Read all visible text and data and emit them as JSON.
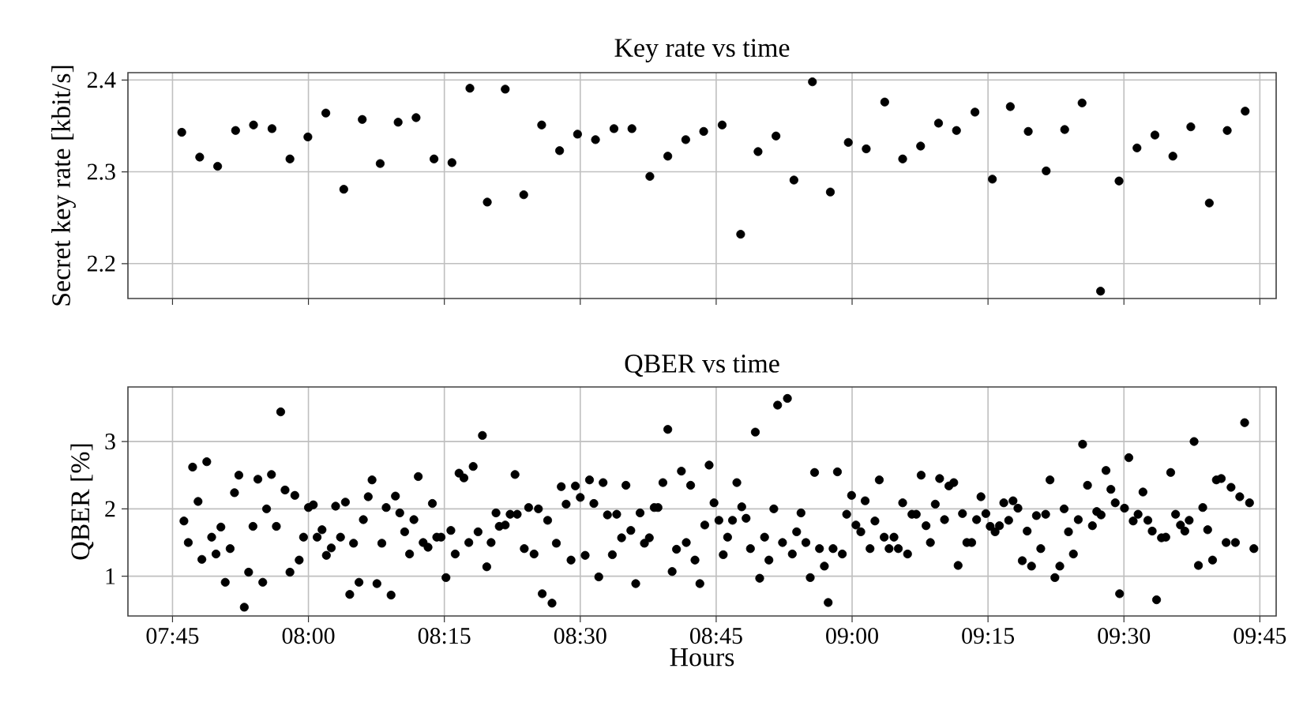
{
  "chart_data": [
    {
      "type": "scatter",
      "title": "Key rate vs time",
      "ylabel": "Secret key rate [kbit/s]",
      "color": "#000000",
      "marker": "circle",
      "grid": true,
      "tick_labels": "y",
      "xlim": [
        7.668,
        9.78
      ],
      "ylim": [
        2.162,
        2.408
      ],
      "xticks": [
        {
          "value": 7.75,
          "label": null
        },
        {
          "value": 8.0,
          "label": null
        },
        {
          "value": 8.25,
          "label": null
        },
        {
          "value": 8.5,
          "label": null
        },
        {
          "value": 8.75,
          "label": null
        },
        {
          "value": 9.0,
          "label": null
        },
        {
          "value": 9.25,
          "label": null
        },
        {
          "value": 9.5,
          "label": null
        },
        {
          "value": 9.75,
          "label": null
        }
      ],
      "yticks": [
        2.2,
        2.3,
        2.4
      ],
      "x": [
        7.767,
        7.8,
        7.833,
        7.866,
        7.899,
        7.933,
        7.966,
        7.999,
        8.032,
        8.065,
        8.099,
        8.132,
        8.165,
        8.198,
        8.231,
        8.264,
        8.297,
        8.329,
        8.362,
        8.396,
        8.429,
        8.462,
        8.495,
        8.528,
        8.562,
        8.595,
        8.628,
        8.661,
        8.694,
        8.727,
        8.761,
        8.795,
        8.827,
        8.86,
        8.893,
        8.927,
        8.96,
        8.993,
        9.026,
        9.06,
        9.093,
        9.126,
        9.159,
        9.192,
        9.226,
        9.258,
        9.291,
        9.324,
        9.357,
        9.391,
        9.423,
        9.457,
        9.491,
        9.524,
        9.557,
        9.59,
        9.623,
        9.657,
        9.69,
        9.723
      ],
      "values": [
        2.343,
        2.316,
        2.306,
        2.345,
        2.351,
        2.347,
        2.314,
        2.338,
        2.364,
        2.281,
        2.357,
        2.309,
        2.354,
        2.359,
        2.314,
        2.31,
        2.391,
        2.267,
        2.39,
        2.275,
        2.351,
        2.323,
        2.341,
        2.335,
        2.347,
        2.347,
        2.295,
        2.317,
        2.335,
        2.344,
        2.351,
        2.232,
        2.322,
        2.339,
        2.291,
        2.398,
        2.278,
        2.332,
        2.325,
        2.376,
        2.314,
        2.328,
        2.353,
        2.345,
        2.365,
        2.292,
        2.371,
        2.344,
        2.301,
        2.346,
        2.375,
        2.17,
        2.29,
        2.326,
        2.34,
        2.317,
        2.349,
        2.266,
        2.345,
        2.366
      ]
    },
    {
      "type": "scatter",
      "title": "QBER vs time",
      "ylabel": "QBER [%]",
      "xlabel": "Hours",
      "color": "#000000",
      "marker": "circle",
      "grid": true,
      "xlim": [
        7.668,
        9.78
      ],
      "ylim": [
        0.41,
        3.81
      ],
      "xticks": [
        {
          "value": 7.75,
          "label": "07:45"
        },
        {
          "value": 8.0,
          "label": "08:00"
        },
        {
          "value": 8.25,
          "label": "08:15"
        },
        {
          "value": 8.5,
          "label": "08:30"
        },
        {
          "value": 8.75,
          "label": "08:45"
        },
        {
          "value": 9.0,
          "label": "09:00"
        },
        {
          "value": 9.25,
          "label": "09:15"
        },
        {
          "value": 9.5,
          "label": "09:30"
        },
        {
          "value": 9.75,
          "label": "09:45"
        }
      ],
      "yticks": [
        1,
        2,
        3
      ],
      "x": [
        7.771,
        7.779,
        7.787,
        7.797,
        7.804,
        7.813,
        7.822,
        7.83,
        7.839,
        7.847,
        7.856,
        7.864,
        7.872,
        7.882,
        7.89,
        7.898,
        7.907,
        7.916,
        7.923,
        7.932,
        7.941,
        7.949,
        7.957,
        7.966,
        7.975,
        7.983,
        7.991,
        8.0,
        8.009,
        8.016,
        8.025,
        8.033,
        8.042,
        8.05,
        8.059,
        8.068,
        8.076,
        8.083,
        8.093,
        8.101,
        8.11,
        8.117,
        8.126,
        8.135,
        8.143,
        8.152,
        8.16,
        8.168,
        8.177,
        8.186,
        8.194,
        8.202,
        8.211,
        8.22,
        8.228,
        8.236,
        8.244,
        8.253,
        8.262,
        8.27,
        8.277,
        8.286,
        8.295,
        8.303,
        8.312,
        8.32,
        8.328,
        8.336,
        8.345,
        8.351,
        8.362,
        8.371,
        8.38,
        8.384,
        8.397,
        8.405,
        8.415,
        8.423,
        8.43,
        8.44,
        8.448,
        8.456,
        8.465,
        8.474,
        8.483,
        8.491,
        8.5,
        8.509,
        8.517,
        8.525,
        8.534,
        8.542,
        8.55,
        8.559,
        8.567,
        8.576,
        8.584,
        8.593,
        8.602,
        8.61,
        8.618,
        8.627,
        8.636,
        8.643,
        8.652,
        8.661,
        8.669,
        8.677,
        8.686,
        8.695,
        8.703,
        8.711,
        8.72,
        8.729,
        8.737,
        8.746,
        8.755,
        8.763,
        8.771,
        8.78,
        8.788,
        8.797,
        8.805,
        8.813,
        8.822,
        8.83,
        8.839,
        8.847,
        8.856,
        8.863,
        8.872,
        8.881,
        8.89,
        8.898,
        8.906,
        8.915,
        8.923,
        8.931,
        8.94,
        8.949,
        8.956,
        8.965,
        8.973,
        8.982,
        8.99,
        8.999,
        9.007,
        9.016,
        9.024,
        9.033,
        9.042,
        9.05,
        9.059,
        9.068,
        9.077,
        9.085,
        9.093,
        9.102,
        9.11,
        9.118,
        9.127,
        9.136,
        9.144,
        9.153,
        9.161,
        9.17,
        9.178,
        9.187,
        9.195,
        9.203,
        9.211,
        9.22,
        9.229,
        9.237,
        9.246,
        9.254,
        9.263,
        9.271,
        9.279,
        9.288,
        9.296,
        9.305,
        9.313,
        9.322,
        9.33,
        9.339,
        9.347,
        9.356,
        9.364,
        9.373,
        9.382,
        9.39,
        9.398,
        9.407,
        9.416,
        9.424,
        9.433,
        9.442,
        9.45,
        9.458,
        9.467,
        9.476,
        9.484,
        9.492,
        9.501,
        9.509,
        9.517,
        9.526,
        9.535,
        9.544,
        9.552,
        9.56,
        9.569,
        9.577,
        9.586,
        9.595,
        9.604,
        9.612,
        9.62,
        9.629,
        9.637,
        9.645,
        9.654,
        9.663,
        9.67,
        9.679,
        9.688,
        9.697,
        9.705,
        9.713,
        9.722,
        9.731,
        9.739
      ],
      "values": [
        1.82,
        1.5,
        2.62,
        2.11,
        1.25,
        2.7,
        1.58,
        1.33,
        1.73,
        0.91,
        1.41,
        2.24,
        2.5,
        0.54,
        1.06,
        1.74,
        2.44,
        0.91,
        2.0,
        2.51,
        1.74,
        3.44,
        2.28,
        1.06,
        2.2,
        1.24,
        1.58,
        2.02,
        2.06,
        1.58,
        1.69,
        1.31,
        1.42,
        2.04,
        1.58,
        2.1,
        0.73,
        1.49,
        0.91,
        1.84,
        2.18,
        2.43,
        0.89,
        1.49,
        2.02,
        0.72,
        2.19,
        1.94,
        1.66,
        1.33,
        1.84,
        2.48,
        1.5,
        1.43,
        2.08,
        1.58,
        1.58,
        0.98,
        1.68,
        1.33,
        2.53,
        2.46,
        1.5,
        2.63,
        1.66,
        3.09,
        1.14,
        1.5,
        1.94,
        1.74,
        1.76,
        1.92,
        2.51,
        1.92,
        1.41,
        2.02,
        1.33,
        2.0,
        0.74,
        1.83,
        0.6,
        1.49,
        2.33,
        2.07,
        1.24,
        2.34,
        2.17,
        1.31,
        2.43,
        2.08,
        0.99,
        2.39,
        1.91,
        1.32,
        1.92,
        1.57,
        2.35,
        1.68,
        0.89,
        1.94,
        1.49,
        1.57,
        2.02,
        2.02,
        2.39,
        3.18,
        1.07,
        1.4,
        2.56,
        1.5,
        2.35,
        1.24,
        0.89,
        1.76,
        2.65,
        2.09,
        1.83,
        1.32,
        1.58,
        1.83,
        2.39,
        2.03,
        1.86,
        1.41,
        3.14,
        0.97,
        1.58,
        1.24,
        2.0,
        3.54,
        1.5,
        3.64,
        1.33,
        1.66,
        1.94,
        1.5,
        0.98,
        2.54,
        1.41,
        1.15,
        0.61,
        1.41,
        2.55,
        1.33,
        1.92,
        2.2,
        1.76,
        1.66,
        2.12,
        1.41,
        1.82,
        2.43,
        1.58,
        1.41,
        1.58,
        1.41,
        2.09,
        1.33,
        1.92,
        1.92,
        2.5,
        1.75,
        1.5,
        2.07,
        2.45,
        1.84,
        2.34,
        2.39,
        1.16,
        1.93,
        1.5,
        1.5,
        1.84,
        2.18,
        1.93,
        1.74,
        1.66,
        1.75,
        2.09,
        1.83,
        2.12,
        2.01,
        1.23,
        1.67,
        1.15,
        1.9,
        1.41,
        1.92,
        2.43,
        0.98,
        1.15,
        2.0,
        1.66,
        1.33,
        1.84,
        2.96,
        2.35,
        1.75,
        1.96,
        1.91,
        2.57,
        2.29,
        2.09,
        0.74,
        2.01,
        2.76,
        1.82,
        1.92,
        2.25,
        1.83,
        1.67,
        0.65,
        1.57,
        1.58,
        2.54,
        1.92,
        1.76,
        1.67,
        1.83,
        3.0,
        1.16,
        2.02,
        1.69,
        1.24,
        2.43,
        2.45,
        1.5,
        2.32,
        1.5,
        2.18,
        3.28,
        2.09,
        1.41
      ]
    }
  ]
}
